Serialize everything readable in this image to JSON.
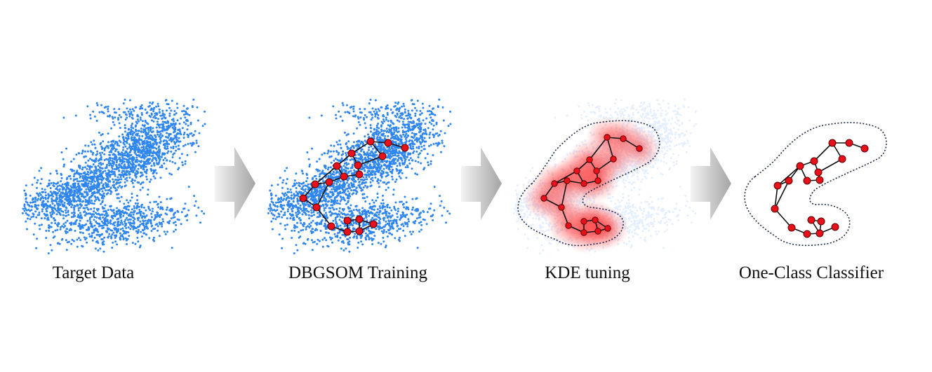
{
  "stages": [
    {
      "id": "target-data",
      "label": "Target Data"
    },
    {
      "id": "dbgsom-training",
      "label": "DBGSOM Training"
    },
    {
      "id": "kde-tuning",
      "label": "KDE tuning"
    },
    {
      "id": "one-class-classifier",
      "label": "One-Class Classifier"
    }
  ],
  "colors": {
    "data_points": "#2f86f0",
    "node_fill": "#e8101a",
    "node_edge": "#111111",
    "kde_glow": "#ff2a2a",
    "boundary": "#1e2a44",
    "arrow_light": "#f2f2f2",
    "arrow_dark": "#a9a9a9"
  },
  "icons": [
    "right-arrow-icon",
    "right-arrow-icon",
    "right-arrow-icon"
  ]
}
